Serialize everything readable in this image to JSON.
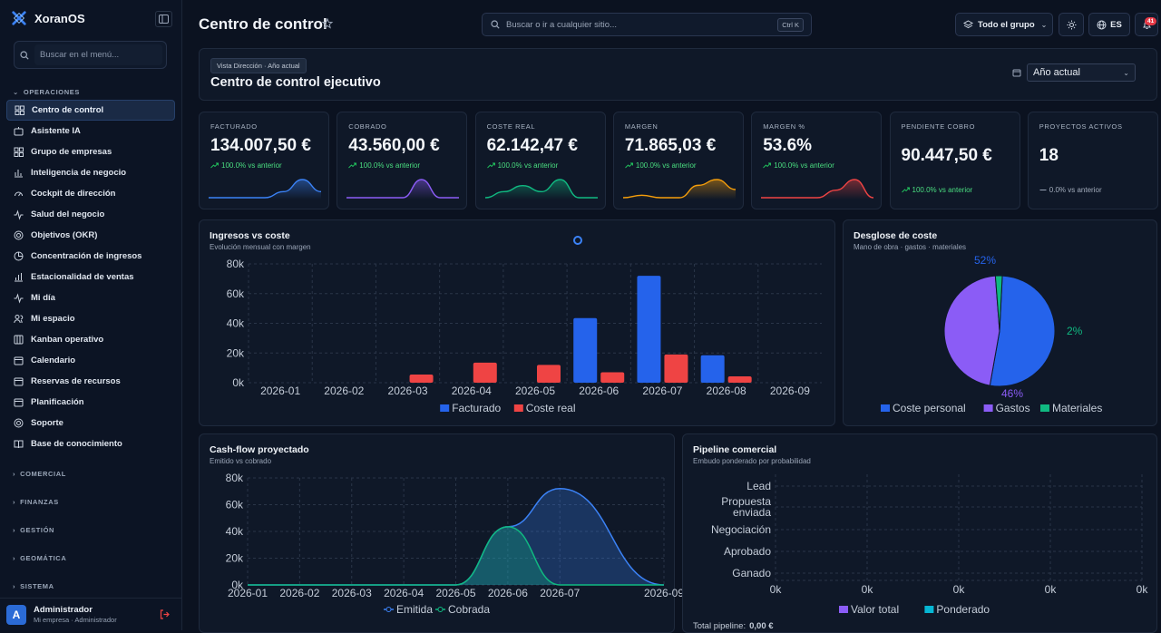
{
  "app": {
    "name": "XoranOS"
  },
  "sidebar": {
    "search_placeholder": "Buscar en el menú...",
    "section_operaciones": "OPERACIONES",
    "items": [
      {
        "label": "Centro de control",
        "icon": "grid-icon",
        "active": true
      },
      {
        "label": "Asistente IA",
        "icon": "ai-icon"
      },
      {
        "label": "Grupo de empresas",
        "icon": "grid-icon"
      },
      {
        "label": "Inteligencia de negocio",
        "icon": "chart-icon"
      },
      {
        "label": "Cockpit de dirección",
        "icon": "gauge-icon"
      },
      {
        "label": "Salud del negocio",
        "icon": "pulse-icon"
      },
      {
        "label": "Objetivos (OKR)",
        "icon": "target-icon"
      },
      {
        "label": "Concentración de ingresos",
        "icon": "pie-icon"
      },
      {
        "label": "Estacionalidad de ventas",
        "icon": "bars-icon"
      },
      {
        "label": "Mi día",
        "icon": "pulse-icon"
      },
      {
        "label": "Mi espacio",
        "icon": "users-icon"
      },
      {
        "label": "Kanban operativo",
        "icon": "kanban-icon"
      },
      {
        "label": "Calendario",
        "icon": "calendar-icon"
      },
      {
        "label": "Reservas de recursos",
        "icon": "calendar-icon"
      },
      {
        "label": "Planificación",
        "icon": "calendar-icon"
      },
      {
        "label": "Soporte",
        "icon": "lifebuoy-icon"
      },
      {
        "label": "Base de conocimiento",
        "icon": "book-icon"
      }
    ],
    "sections": [
      "COMERCIAL",
      "FINANZAS",
      "GESTIÓN",
      "GEOMÁTICA",
      "SISTEMA"
    ],
    "user": {
      "name": "Administrador",
      "sub": "Mi empresa · Administrador",
      "initial": "A"
    }
  },
  "header": {
    "title": "Centro de control",
    "search_placeholder": "Buscar o ir a cualquier sitio...",
    "search_shortcut": "Ctrl K",
    "group_label": "Todo el grupo",
    "language": "ES",
    "notifications": "41"
  },
  "hero": {
    "tag": "Vista Dirección · Año actual",
    "title": "Centro de control ejecutivo",
    "period": "Año actual"
  },
  "kpis": [
    {
      "label": "FACTURADO",
      "value": "134.007,50 €",
      "change": "100.0% vs anterior",
      "color": "#3b82f6",
      "trend": "up",
      "spark": [
        0,
        0,
        0,
        0,
        1,
        3,
        1
      ]
    },
    {
      "label": "COBRADO",
      "value": "43.560,00 €",
      "change": "100.0% vs anterior",
      "color": "#8b5cf6",
      "trend": "up",
      "spark": [
        0,
        0,
        0,
        0,
        3,
        0,
        0
      ]
    },
    {
      "label": "COSTE REAL",
      "value": "62.142,47 €",
      "change": "100.0% vs anterior",
      "color": "#10b981",
      "trend": "up",
      "spark": [
        0,
        1,
        2,
        1,
        3,
        0,
        0
      ]
    },
    {
      "label": "MARGEN",
      "value": "71.865,03 €",
      "change": "100.0% vs anterior",
      "color": "#f59e0b",
      "trend": "up",
      "spark": [
        0,
        0.3,
        0,
        0,
        1.5,
        2.2,
        1
      ]
    },
    {
      "label": "MARGEN %",
      "value": "53.6%",
      "change": "100.0% vs anterior",
      "color": "#ef4444",
      "trend": "up",
      "spark": [
        0,
        0,
        0,
        0,
        1,
        2.4,
        0
      ]
    },
    {
      "label": "PENDIENTE COBRO",
      "value": "90.447,50 €",
      "change": "100.0% vs anterior",
      "color": "#22c55e",
      "trend": "up",
      "spark": []
    },
    {
      "label": "PROYECTOS ACTIVOS",
      "value": "18",
      "change": "0.0% vs anterior",
      "color": "#9aa5b7",
      "trend": "flat",
      "spark": []
    }
  ],
  "charts": {
    "income": {
      "title": "Ingresos vs coste",
      "subtitle": "Evolución mensual con margen"
    },
    "cost": {
      "title": "Desglose de coste",
      "subtitle": "Mano de obra · gastos · materiales"
    },
    "cashflow": {
      "title": "Cash-flow proyectado",
      "subtitle": "Emitido vs cobrado"
    },
    "pipeline": {
      "title": "Pipeline comercial",
      "subtitle": "Embudo ponderado por probabilidad",
      "total_label": "Total pipeline:",
      "total_value": "0,00 €"
    }
  },
  "chart_data": [
    {
      "type": "bar",
      "title": "Ingresos vs coste",
      "categories": [
        "2026-01",
        "2026-02",
        "2026-03",
        "2026-04",
        "2026-05",
        "2026-06",
        "2026-07",
        "2026-08",
        "2026-09"
      ],
      "series": [
        {
          "name": "Facturado",
          "color": "#2563eb",
          "values": [
            0,
            0,
            0,
            0,
            0,
            43500,
            72000,
            18500,
            0
          ]
        },
        {
          "name": "Coste real",
          "color": "#ef4444",
          "values": [
            0,
            0,
            5500,
            13500,
            12000,
            7000,
            19000,
            4300,
            0
          ]
        }
      ],
      "yticks": [
        "0k",
        "20k",
        "40k",
        "60k",
        "80k"
      ],
      "ylim": [
        0,
        80000
      ]
    },
    {
      "type": "pie",
      "title": "Desglose de coste",
      "series": [
        {
          "name": "Coste personal",
          "color": "#2563eb",
          "value": 52,
          "label": "52%"
        },
        {
          "name": "Gastos",
          "color": "#8b5cf6",
          "value": 46,
          "label": "46%"
        },
        {
          "name": "Materiales",
          "color": "#10b981",
          "value": 2,
          "label": "2%"
        }
      ]
    },
    {
      "type": "area",
      "title": "Cash-flow proyectado",
      "x": [
        "2026-01",
        "2026-02",
        "2026-03",
        "2026-04",
        "2026-05",
        "2026-06",
        "2026-07",
        "2026-09"
      ],
      "series": [
        {
          "name": "Emitida",
          "color": "#3b82f6",
          "values": [
            0,
            0,
            0,
            0,
            0,
            43500,
            72000,
            0
          ]
        },
        {
          "name": "Cobrada",
          "color": "#10b981",
          "values": [
            0,
            0,
            0,
            0,
            0,
            43500,
            0,
            0
          ]
        }
      ],
      "yticks": [
        "0k",
        "20k",
        "40k",
        "60k",
        "80k"
      ],
      "ylim": [
        0,
        80000
      ]
    },
    {
      "type": "bar",
      "title": "Pipeline comercial",
      "categories": [
        "Lead",
        "Propuesta enviada",
        "Negociación",
        "Aprobado",
        "Ganado"
      ],
      "series": [
        {
          "name": "Valor total",
          "color": "#8b5cf6",
          "values": [
            0,
            0,
            0,
            0,
            0
          ]
        },
        {
          "name": "Ponderado",
          "color": "#06b6d4",
          "values": [
            0,
            0,
            0,
            0,
            0
          ]
        }
      ],
      "xticks": [
        "0k",
        "0k",
        "0k",
        "0k",
        "0k"
      ]
    }
  ]
}
